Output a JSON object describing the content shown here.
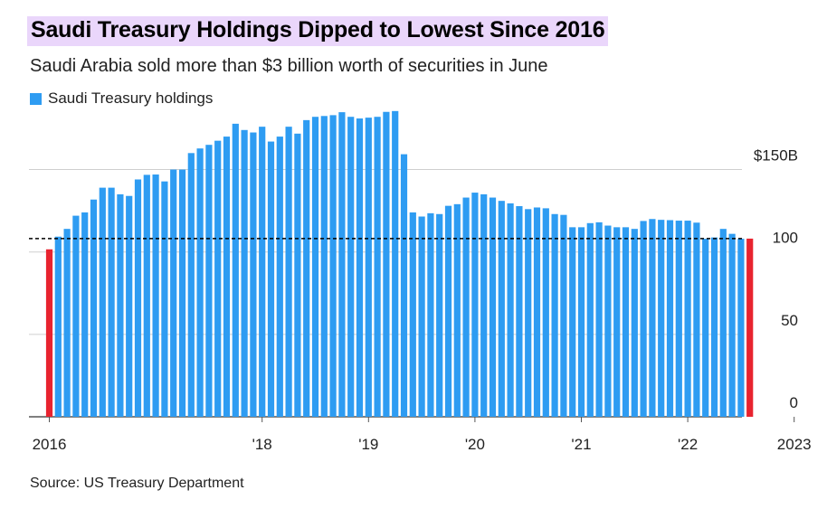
{
  "title": "Saudi Treasury Holdings Dipped to Lowest Since 2016",
  "subtitle": "Saudi Arabia sold more than $3 billion worth of securities in June",
  "source": "Source: US Treasury Department",
  "colors": {
    "bar": "#2e9cf2",
    "highlight": "#e8232f",
    "title_bg": "#ead6fb",
    "grid": "#cfcfcf"
  },
  "chart_data": {
    "type": "bar",
    "legend": [
      "Saudi Treasury holdings"
    ],
    "legend_position": "top-left",
    "series": [
      {
        "name": "Saudi Treasury holdings",
        "values": [
          101.6,
          109.3,
          114.0,
          122.0,
          124.0,
          131.8,
          139.0,
          139.0,
          135.0,
          134.0,
          144.0,
          146.8,
          147.0,
          142.8,
          150.0,
          150.0,
          160.0,
          162.8,
          165.0,
          167.5,
          170.0,
          177.8,
          174.0,
          172.5,
          176.0,
          167.0,
          170.0,
          176.0,
          171.8,
          180.0,
          182.0,
          182.5,
          183.0,
          184.8,
          182.0,
          181.0,
          181.5,
          182.0,
          185.0,
          185.5,
          159.3,
          124.0,
          121.5,
          123.5,
          123.0,
          128.0,
          129.0,
          133.0,
          136.0,
          135.0,
          133.0,
          131.0,
          129.5,
          127.8,
          126.0,
          127.0,
          126.5,
          123.0,
          122.5,
          115.0,
          115.0,
          117.5,
          118.0,
          116.0,
          115.0,
          115.0,
          114.0,
          118.8,
          120.0,
          119.5,
          119.3,
          119.0,
          119.0,
          117.8,
          108.0,
          108.8,
          114.0,
          111.0,
          108.0,
          108.1
        ],
        "highlight_indices": [
          0,
          79
        ]
      }
    ],
    "x_start": "2016-01",
    "x_end": "2023-06",
    "x_tick_labels": [
      {
        "label": "2016",
        "date": "2016-01"
      },
      {
        "label": "'18",
        "date": "2018-01"
      },
      {
        "label": "'19",
        "date": "2019-01"
      },
      {
        "label": "'20",
        "date": "2020-01"
      },
      {
        "label": "'21",
        "date": "2021-01"
      },
      {
        "label": "'22",
        "date": "2022-01"
      },
      {
        "label": "2023",
        "date": "2023-01"
      }
    ],
    "y_ticks": [
      {
        "label": "$150B",
        "value": 150
      },
      {
        "label": "100",
        "value": 100
      },
      {
        "label": "50",
        "value": 50
      },
      {
        "label": "0",
        "value": 0
      }
    ],
    "ylim": [
      0,
      190
    ],
    "reference_line": {
      "value": 108.1,
      "style": "dashed"
    },
    "grid": "horizontal",
    "xlabel": "",
    "ylabel": ""
  }
}
